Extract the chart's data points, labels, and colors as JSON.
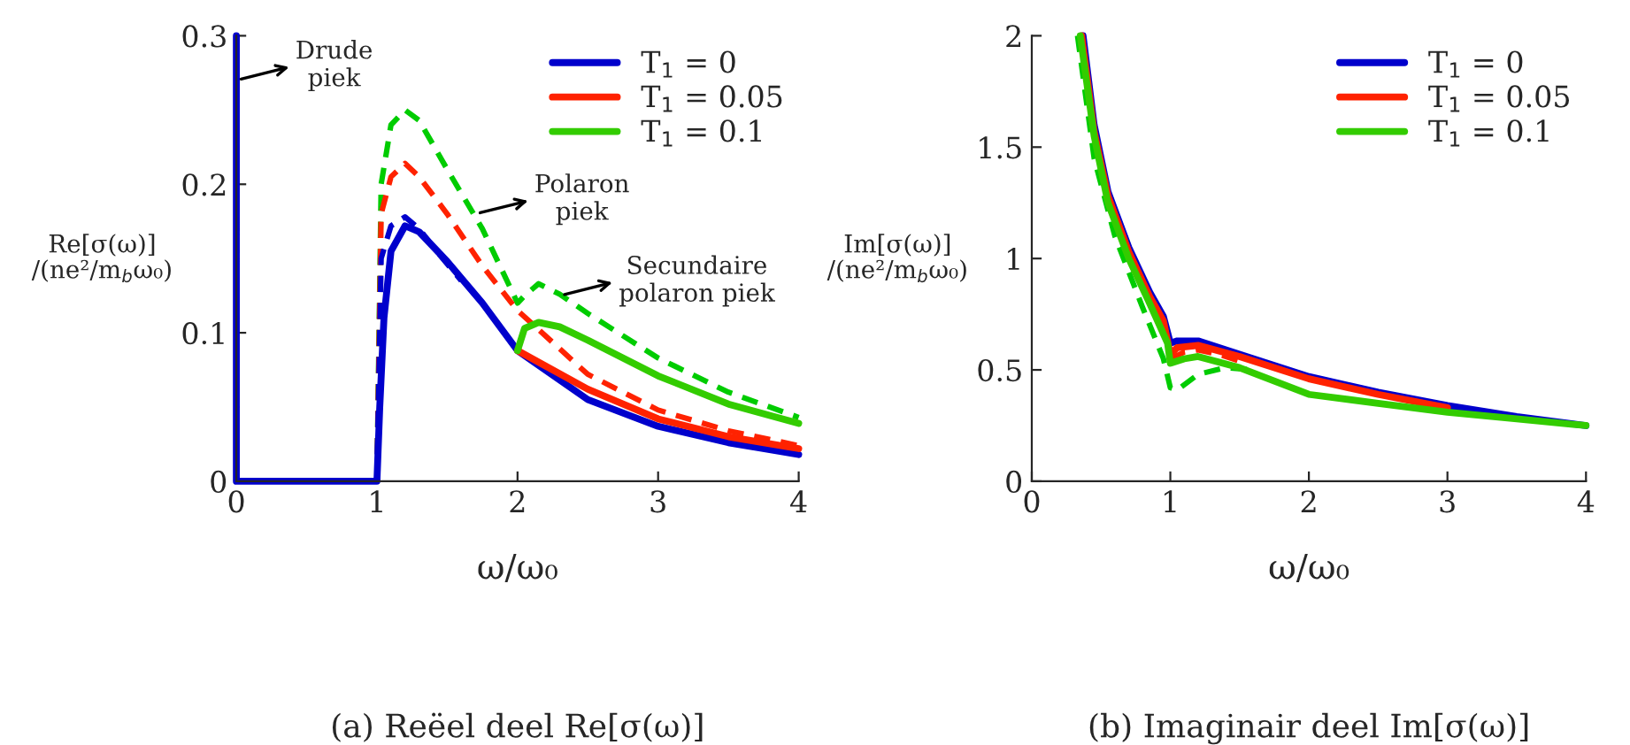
{
  "chart_data": [
    {
      "type": "line",
      "xlabel": "ω/ω₀",
      "ylabel": "Re[σ(ω)]\n/(ne²/m$_{b}$ω₀)",
      "xlim": [
        0,
        4
      ],
      "ylim": [
        0,
        0.3
      ],
      "xticks": [
        0,
        1,
        2,
        3,
        4
      ],
      "yticks": [
        0,
        0.1,
        0.2,
        0.3
      ],
      "legend": "top right",
      "series": [
        {
          "color": "#00cc00",
          "line_style": "dashed",
          "x": [
            1,
            1.03,
            1.1,
            1.2,
            1.3,
            1.5,
            1.75,
            2,
            2.05,
            2.15,
            2.3,
            2.5,
            3,
            3.5,
            4
          ],
          "values": [
            0,
            0.2,
            0.24,
            0.25,
            0.243,
            0.21,
            0.17,
            0.12,
            0.125,
            0.133,
            0.126,
            0.113,
            0.083,
            0.06,
            0.043
          ]
        },
        {
          "color": "#ff2200",
          "line_style": "dashed",
          "x": [
            1,
            1.03,
            1.1,
            1.2,
            1.3,
            1.5,
            1.75,
            2,
            2.5,
            3,
            3.5,
            4
          ],
          "values": [
            0,
            0.18,
            0.205,
            0.214,
            0.205,
            0.18,
            0.145,
            0.115,
            0.072,
            0.048,
            0.034,
            0.024
          ]
        },
        {
          "color": "#0000cc",
          "line_style": "dashed",
          "x": [
            1,
            1.03,
            1.1,
            1.2,
            1.3,
            1.45,
            1.6
          ],
          "values": [
            0,
            0.15,
            0.172,
            0.178,
            0.17,
            0.152,
            0.135
          ]
        },
        {
          "name": "T$_{1}$ = 0",
          "color": "#0000cc",
          "line_style": "solid",
          "x": [
            0,
            0,
            1,
            1.02,
            1.05,
            1.1,
            1.2,
            1.3,
            1.5,
            1.75,
            2,
            2.5,
            3,
            3.5,
            4
          ],
          "values": [
            0.3,
            0,
            0,
            0.05,
            0.11,
            0.155,
            0.172,
            0.168,
            0.148,
            0.12,
            0.088,
            0.055,
            0.037,
            0.026,
            0.018
          ]
        },
        {
          "name": "T$_{1}$ = 0.05",
          "color": "#ff2200",
          "line_style": "solid",
          "x": [
            2,
            2.5,
            3,
            3.5,
            4
          ],
          "values": [
            0.088,
            0.062,
            0.042,
            0.03,
            0.022
          ]
        },
        {
          "name": "T$_{1}$ = 0.1",
          "color": "#33cc00",
          "line_style": "solid",
          "x": [
            2,
            2.05,
            2.15,
            2.3,
            2.5,
            3,
            3.5,
            4
          ],
          "values": [
            0.088,
            0.103,
            0.107,
            0.104,
            0.095,
            0.071,
            0.052,
            0.039
          ]
        }
      ],
      "annotations": [
        {
          "text": "Drude\npiek",
          "x": 0,
          "y": 0.27
        },
        {
          "text": "Polaron\npiek",
          "x": 1.7,
          "y": 0.18
        },
        {
          "text": "Secundaire\npolaron piek",
          "x": 2.3,
          "y": 0.125
        },
        "(a) Reëel deel Re[σ(ω)]"
      ]
    },
    {
      "type": "line",
      "xlabel": "ω/ω₀",
      "ylabel": "Im[σ(ω)]\n/(ne²/m$_{b}$ω₀)",
      "xlim": [
        0,
        4
      ],
      "ylim": [
        0,
        2
      ],
      "xticks": [
        0,
        1,
        2,
        3,
        4
      ],
      "yticks": [
        0,
        0.5,
        1,
        1.5,
        2
      ],
      "legend": "top right",
      "series": [
        {
          "color": "#00cc00",
          "line_style": "dashed",
          "x": [
            0.33,
            0.45,
            0.6,
            0.8,
            0.95,
            1.0,
            1.05,
            1.2,
            1.4,
            1.6
          ],
          "values": [
            2.0,
            1.45,
            1.1,
            0.78,
            0.55,
            0.42,
            0.41,
            0.48,
            0.51,
            0.5
          ]
        },
        {
          "color": "#ff2200",
          "line_style": "dashed",
          "x": [
            1.0,
            1.1,
            1.2,
            1.35,
            1.5
          ],
          "values": [
            0.55,
            0.58,
            0.59,
            0.57,
            0.54
          ]
        },
        {
          "name": "T$_{1}$ = 0",
          "color": "#0000cc",
          "line_style": "solid",
          "x": [
            0.37,
            0.45,
            0.55,
            0.7,
            0.85,
            0.95,
            1.0,
            1.05,
            1.2,
            1.5,
            2,
            2.5,
            3,
            3.5,
            4
          ],
          "values": [
            2.0,
            1.6,
            1.3,
            1.05,
            0.85,
            0.74,
            0.62,
            0.63,
            0.63,
            0.57,
            0.47,
            0.4,
            0.34,
            0.29,
            0.25
          ]
        },
        {
          "name": "T$_{1}$ = 0.05",
          "color": "#ff2200",
          "line_style": "solid",
          "x": [
            0.36,
            0.45,
            0.55,
            0.7,
            0.85,
            0.95,
            1.0,
            1.05,
            1.2,
            1.5,
            2,
            2.5,
            3
          ],
          "values": [
            2.0,
            1.57,
            1.28,
            1.03,
            0.83,
            0.72,
            0.57,
            0.6,
            0.61,
            0.56,
            0.46,
            0.39,
            0.33
          ]
        },
        {
          "name": "T$_{1}$ = 0.1",
          "color": "#33cc00",
          "line_style": "solid",
          "x": [
            0.35,
            0.45,
            0.55,
            0.7,
            0.85,
            0.98,
            1.0,
            1.1,
            1.2,
            1.5,
            2,
            2.5,
            3,
            3.5,
            4
          ],
          "values": [
            2.0,
            1.55,
            1.25,
            1.0,
            0.8,
            0.62,
            0.53,
            0.55,
            0.56,
            0.51,
            0.39,
            0.35,
            0.31,
            0.28,
            0.25
          ]
        }
      ],
      "annotations": [
        "(b) Imaginair deel Im[σ(ω)]"
      ]
    }
  ]
}
